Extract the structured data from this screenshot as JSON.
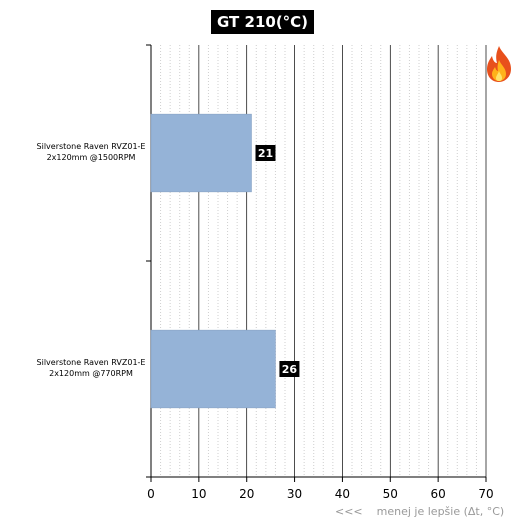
{
  "chart_data": {
    "type": "bar",
    "orientation": "horizontal",
    "title": "GT 210(°C)",
    "categories": [
      "Silverstone Raven RVZ01-E\n2x120mm @1500RPM",
      "Silverstone Raven RVZ01-E\n2x120mm @770RPM"
    ],
    "values": [
      21,
      26
    ],
    "data_labels": [
      "21",
      "26"
    ],
    "xlim": [
      0,
      70
    ],
    "x_ticks": [
      0,
      10,
      20,
      30,
      40,
      50,
      60,
      70
    ],
    "x_tick_labels": [
      "0",
      "10",
      "20",
      "30",
      "40",
      "50",
      "60",
      "70"
    ],
    "grid": true,
    "bar_color": "#95b3d7",
    "label_box_color": "#000000"
  },
  "footer": {
    "arrows": "<<<",
    "text": "menej je lepšie (Δt, °C)"
  },
  "icons": {
    "flame": "flame-icon"
  }
}
